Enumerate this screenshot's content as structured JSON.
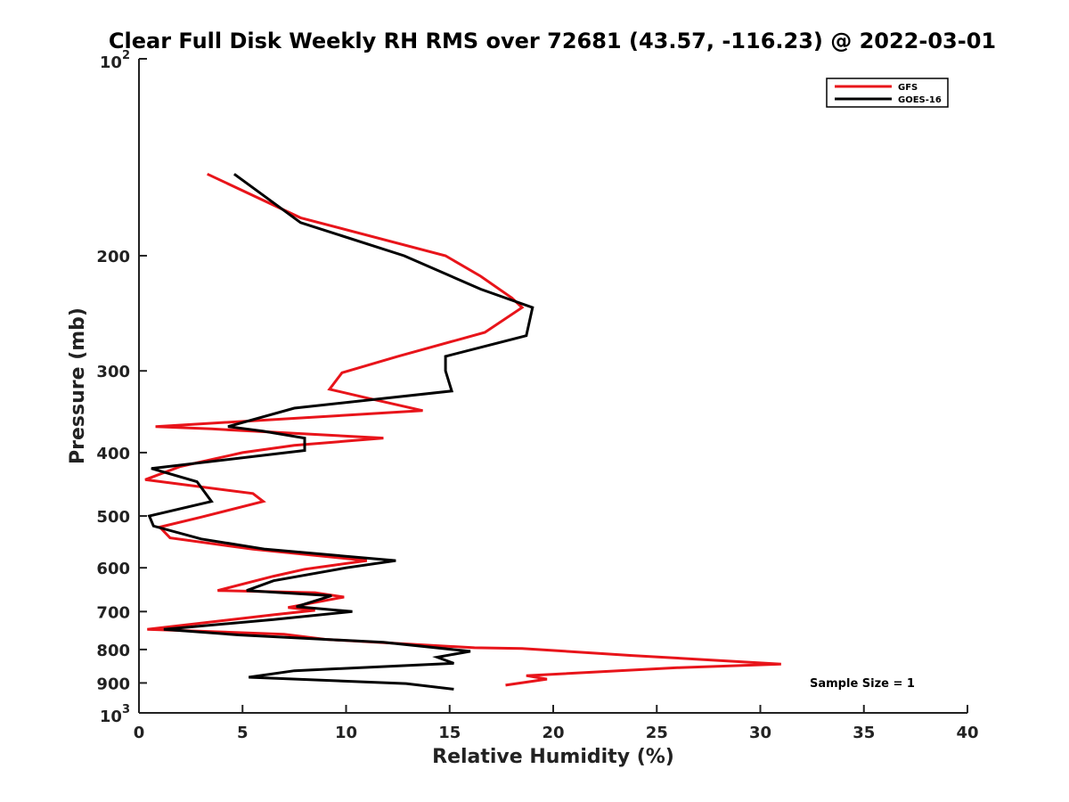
{
  "chart_data": {
    "type": "line",
    "title": "Clear Full Disk Weekly RH RMS over 72681 (43.57, -116.23) @ 2022-03-01",
    "xlabel": "Relative Humidity (%)",
    "ylabel": "Pressure (mb)",
    "xlim": [
      0,
      40
    ],
    "ylim": [
      100,
      1000
    ],
    "y_scale": "log",
    "y_inverted": false,
    "grid": false,
    "legend_position": "top-right",
    "x_ticks": [
      "0",
      "5",
      "10",
      "15",
      "20",
      "25",
      "30",
      "35",
      "40"
    ],
    "y_ticks": [
      {
        "value": 100,
        "label": "",
        "base": "10",
        "exp": "2"
      },
      {
        "value": 200,
        "label": "200"
      },
      {
        "value": 300,
        "label": "300"
      },
      {
        "value": 400,
        "label": "400"
      },
      {
        "value": 500,
        "label": "500"
      },
      {
        "value": 600,
        "label": "600"
      },
      {
        "value": 700,
        "label": "700"
      },
      {
        "value": 800,
        "label": "800"
      },
      {
        "value": 900,
        "label": "900"
      },
      {
        "value": 1000,
        "label": "",
        "base": "10",
        "exp": "3"
      }
    ],
    "annotation": "Sample Size = 1",
    "series": [
      {
        "name": "GFS",
        "color": "#e8141a",
        "points": [
          [
            3.3,
            150
          ],
          [
            7.8,
            175
          ],
          [
            14.8,
            200
          ],
          [
            16.5,
            215
          ],
          [
            18.0,
            232
          ],
          [
            18.5,
            240
          ],
          [
            16.7,
            262
          ],
          [
            12.5,
            285
          ],
          [
            9.8,
            302
          ],
          [
            9.2,
            320
          ],
          [
            11.0,
            330
          ],
          [
            13.7,
            345
          ],
          [
            0.8,
            365
          ],
          [
            3.5,
            368
          ],
          [
            11.8,
            380
          ],
          [
            7.5,
            390
          ],
          [
            5.0,
            400
          ],
          [
            2.0,
            420
          ],
          [
            0.3,
            440
          ],
          [
            5.5,
            462
          ],
          [
            6.0,
            475
          ],
          [
            3.0,
            502
          ],
          [
            1.0,
            520
          ],
          [
            1.5,
            540
          ],
          [
            5.5,
            562
          ],
          [
            11.0,
            585
          ],
          [
            8.0,
            603
          ],
          [
            6.5,
            618
          ],
          [
            3.8,
            650
          ],
          [
            8.5,
            655
          ],
          [
            9.9,
            665
          ],
          [
            7.2,
            690
          ],
          [
            8.5,
            697
          ],
          [
            6.5,
            708
          ],
          [
            0.4,
            745
          ],
          [
            7.0,
            758
          ],
          [
            9.0,
            772
          ],
          [
            16.2,
            795
          ],
          [
            18.5,
            797
          ],
          [
            23.8,
            817
          ],
          [
            31.0,
            842
          ],
          [
            26.0,
            853
          ],
          [
            18.7,
            877
          ],
          [
            19.7,
            888
          ],
          [
            17.7,
            907
          ]
        ]
      },
      {
        "name": "GOES-16",
        "color": "#000000",
        "points": [
          [
            4.6,
            150
          ],
          [
            7.8,
            178
          ],
          [
            12.8,
            200
          ],
          [
            16.5,
            225
          ],
          [
            19.0,
            240
          ],
          [
            18.7,
            265
          ],
          [
            14.8,
            285
          ],
          [
            14.8,
            300
          ],
          [
            15.1,
            322
          ],
          [
            7.5,
            342
          ],
          [
            4.3,
            365
          ],
          [
            6.0,
            371
          ],
          [
            8.0,
            380
          ],
          [
            8.0,
            397
          ],
          [
            0.6,
            423
          ],
          [
            2.8,
            443
          ],
          [
            3.5,
            475
          ],
          [
            0.5,
            500
          ],
          [
            0.7,
            518
          ],
          [
            3.0,
            542
          ],
          [
            6.1,
            562
          ],
          [
            12.4,
            585
          ],
          [
            10.0,
            600
          ],
          [
            6.5,
            628
          ],
          [
            5.2,
            650
          ],
          [
            9.3,
            662
          ],
          [
            7.6,
            688
          ],
          [
            10.3,
            700
          ],
          [
            6.5,
            720
          ],
          [
            1.2,
            745
          ],
          [
            4.8,
            760
          ],
          [
            11.8,
            780
          ],
          [
            16.0,
            805
          ],
          [
            14.4,
            822
          ],
          [
            15.2,
            840
          ],
          [
            7.5,
            862
          ],
          [
            5.3,
            882
          ],
          [
            12.9,
            902
          ],
          [
            15.2,
            920
          ]
        ]
      }
    ]
  }
}
